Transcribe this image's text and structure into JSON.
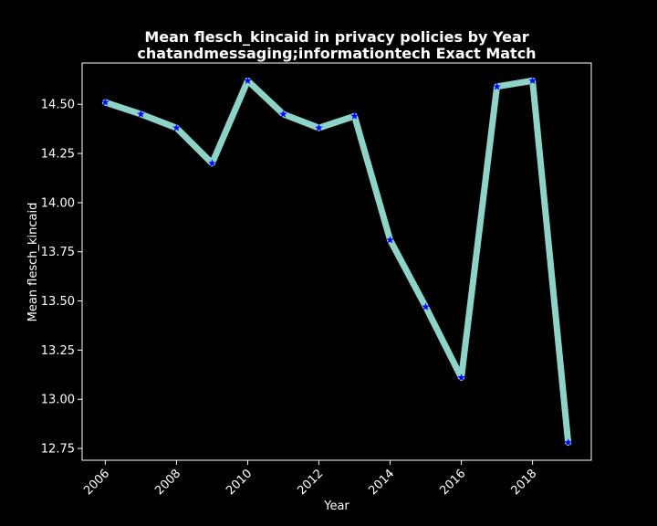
{
  "chart_data": {
    "type": "line",
    "title": "Mean flesch_kincaid in privacy policies by Year",
    "subtitle": "chatandmessaging;informationtech Exact Match",
    "xlabel": "Year",
    "ylabel": "Mean flesch_kincaid",
    "x": [
      2006,
      2007,
      2008,
      2009,
      2010,
      2011,
      2012,
      2013,
      2014,
      2015,
      2016,
      2017,
      2018,
      2019
    ],
    "series": [
      {
        "values": [
          14.51,
          14.45,
          14.38,
          14.2,
          14.62,
          14.45,
          14.38,
          14.44,
          13.81,
          13.47,
          13.11,
          14.59,
          14.62,
          12.78
        ]
      }
    ],
    "xticks": [
      "2006",
      "2008",
      "2010",
      "2012",
      "2014",
      "2016",
      "2018"
    ],
    "yticks": [
      "12.75",
      "13.00",
      "13.25",
      "13.50",
      "13.75",
      "14.00",
      "14.25",
      "14.50"
    ],
    "xlim": [
      2005.35,
      2019.65
    ],
    "ylim": [
      12.69,
      14.71
    ],
    "grid": false,
    "colors": {
      "background": "#000000",
      "line": "#8dd3c7",
      "marker": "#0000ff",
      "axes": "#ffffff",
      "text": "#ffffff"
    }
  }
}
